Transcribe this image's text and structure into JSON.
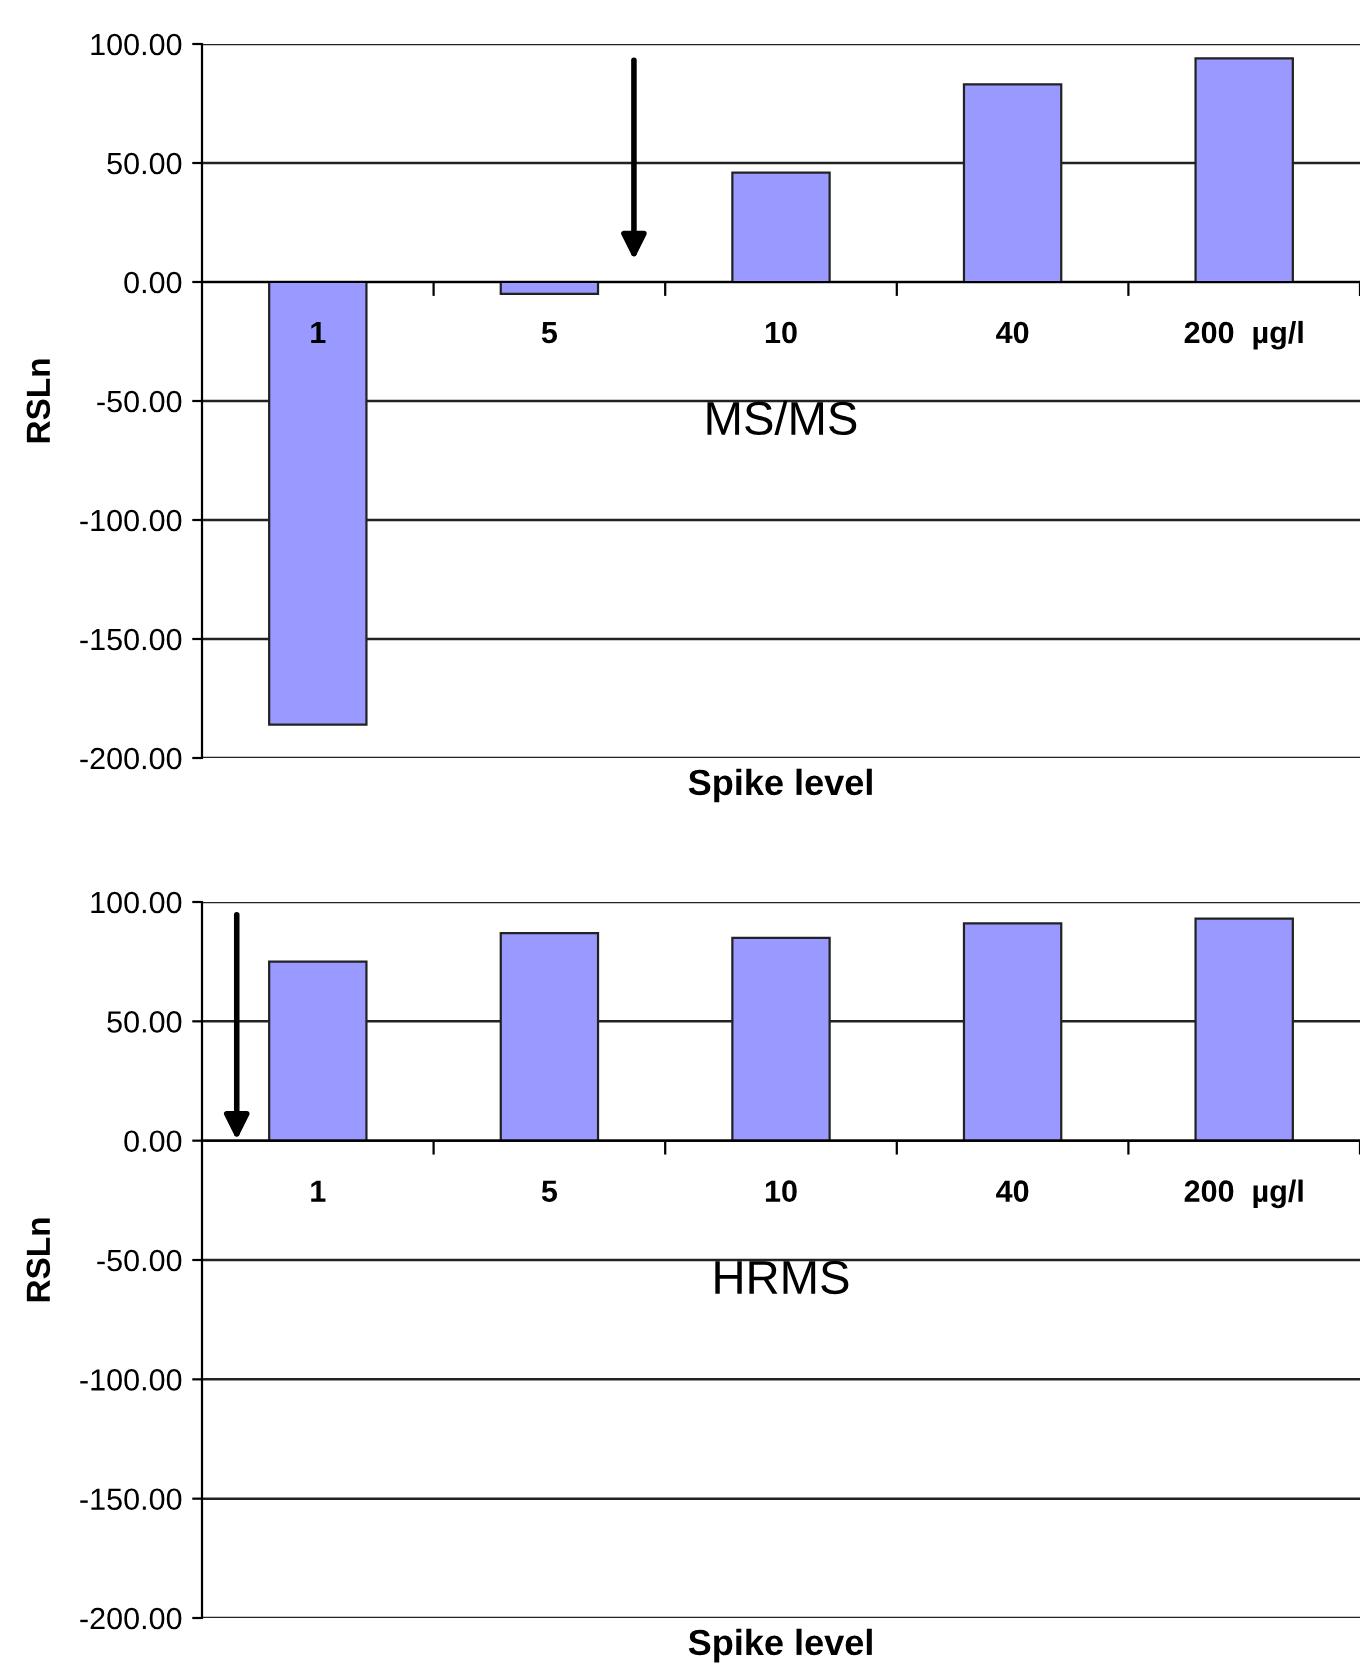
{
  "chart_data": [
    {
      "type": "bar",
      "categories": [
        "1",
        "5",
        "10",
        "40",
        "200  µg/l"
      ],
      "values": [
        -186,
        -5,
        46,
        83,
        94
      ],
      "color": "#9999ff",
      "ylabel": "RSLn",
      "xlabel": "Spike level",
      "annotations": [
        "MS/MS"
      ],
      "ylim": [
        -200,
        100
      ],
      "yticks": [
        {
          "value": 100,
          "label": "100.00"
        },
        {
          "value": 50,
          "label": "50.00"
        },
        {
          "value": 0,
          "label": "0.00"
        },
        {
          "value": -50,
          "label": "-50.00"
        },
        {
          "value": -100,
          "label": "-100.00"
        },
        {
          "value": -150,
          "label": "-150.00"
        },
        {
          "value": -200,
          "label": "-200.00"
        }
      ],
      "grid": "y"
    },
    {
      "type": "bar",
      "categories": [
        "1",
        "5",
        "10",
        "40",
        "200  µg/l"
      ],
      "values": [
        75,
        87,
        85,
        91,
        93
      ],
      "color": "#9999ff",
      "ylabel": "RSLn",
      "xlabel": "Spike level",
      "annotations": [
        "HRMS"
      ],
      "ylim": [
        -200,
        100
      ],
      "yticks": [
        {
          "value": 100,
          "label": "100.00"
        },
        {
          "value": 50,
          "label": "50.00"
        },
        {
          "value": 0,
          "label": "0.00"
        },
        {
          "value": -50,
          "label": "-50.00"
        },
        {
          "value": -100,
          "label": "-100.00"
        },
        {
          "value": -150,
          "label": "-150.00"
        },
        {
          "value": -200,
          "label": "-200.00"
        }
      ],
      "grid": "y"
    }
  ]
}
